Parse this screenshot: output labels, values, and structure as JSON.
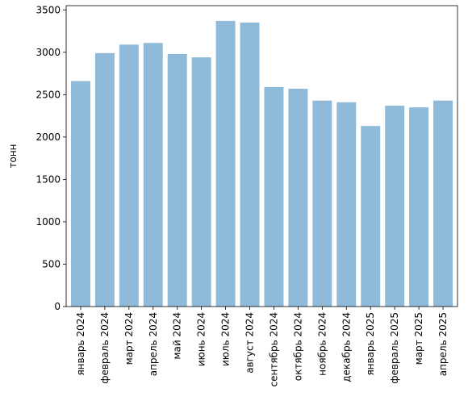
{
  "chart_data": {
    "type": "bar",
    "title": "",
    "xlabel": "",
    "ylabel": "тонн",
    "categories": [
      "январь 2024",
      "февраль 2024",
      "март 2024",
      "апрель 2024",
      "май 2024",
      "июнь 2024",
      "июль 2024",
      "август 2024",
      "сентябрь 2024",
      "октябрь 2024",
      "ноябрь 2024",
      "декабрь 2024",
      "январь 2025",
      "февраль 2025",
      "март 2025",
      "апрель 2025"
    ],
    "values": [
      2660,
      2990,
      3090,
      3110,
      2980,
      2940,
      3370,
      3350,
      2590,
      2570,
      2430,
      2410,
      2130,
      2370,
      2350,
      2430
    ],
    "ylim": [
      0,
      3550
    ],
    "yticks": [
      0,
      500,
      1000,
      1500,
      2000,
      2500,
      3000,
      3500
    ],
    "bar_color": "#8fbad9",
    "grid": false
  }
}
